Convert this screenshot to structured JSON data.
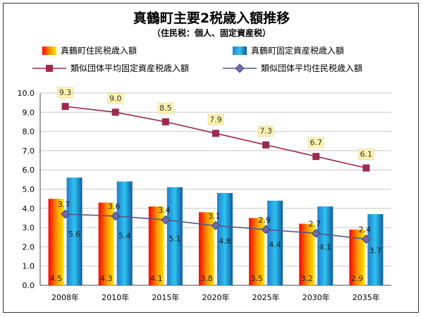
{
  "chart_data": {
    "type": "bar",
    "title": "真鶴町主要2税歳入額推移",
    "subtitle": "（住民税：個人、固定資産税）",
    "categories": [
      "2008年",
      "2010年",
      "2015年",
      "2020年",
      "2025年",
      "2030年",
      "2035年"
    ],
    "ylim": [
      0,
      10
    ],
    "yticks": [
      "0.0",
      "1.0",
      "2.0",
      "3.0",
      "4.0",
      "5.0",
      "6.0",
      "7.0",
      "8.0",
      "9.0",
      "10.0"
    ],
    "grid": true,
    "legend_position": "top",
    "series": [
      {
        "name": "真鶴町住民税歳入額",
        "kind": "bar",
        "color": "#e85a00",
        "values": [
          4.5,
          4.3,
          4.1,
          3.8,
          3.5,
          3.2,
          2.9
        ],
        "labels": [
          "4.5",
          "4.3",
          "4.1",
          "3.8",
          "3.5",
          "3.2",
          "2.9"
        ]
      },
      {
        "name": "真鶴町固定資産税歳入額",
        "kind": "bar",
        "color": "#1a9ad6",
        "values": [
          5.6,
          5.4,
          5.1,
          4.8,
          4.4,
          4.1,
          3.7
        ],
        "labels": [
          "5.6",
          "5.4",
          "5.1",
          "4.8",
          "4.4",
          "4.1",
          "3.7"
        ]
      },
      {
        "name": "類似団体平均固定資産税歳入額",
        "kind": "line",
        "color": "#9b2a4e",
        "values": [
          9.3,
          9.0,
          8.5,
          7.9,
          7.3,
          6.7,
          6.1
        ],
        "labels": [
          "9.3",
          "9.0",
          "8.5",
          "7.9",
          "7.3",
          "6.7",
          "6.1"
        ]
      },
      {
        "name": "類似団体平均住民税歳入額",
        "kind": "line",
        "color": "#55558a",
        "values": [
          3.7,
          3.6,
          3.4,
          3.1,
          2.9,
          2.7,
          2.4
        ],
        "labels": [
          "3.7",
          "3.6",
          "3.4",
          "3.1",
          "2.9",
          "2.7",
          "2.4"
        ]
      }
    ]
  }
}
